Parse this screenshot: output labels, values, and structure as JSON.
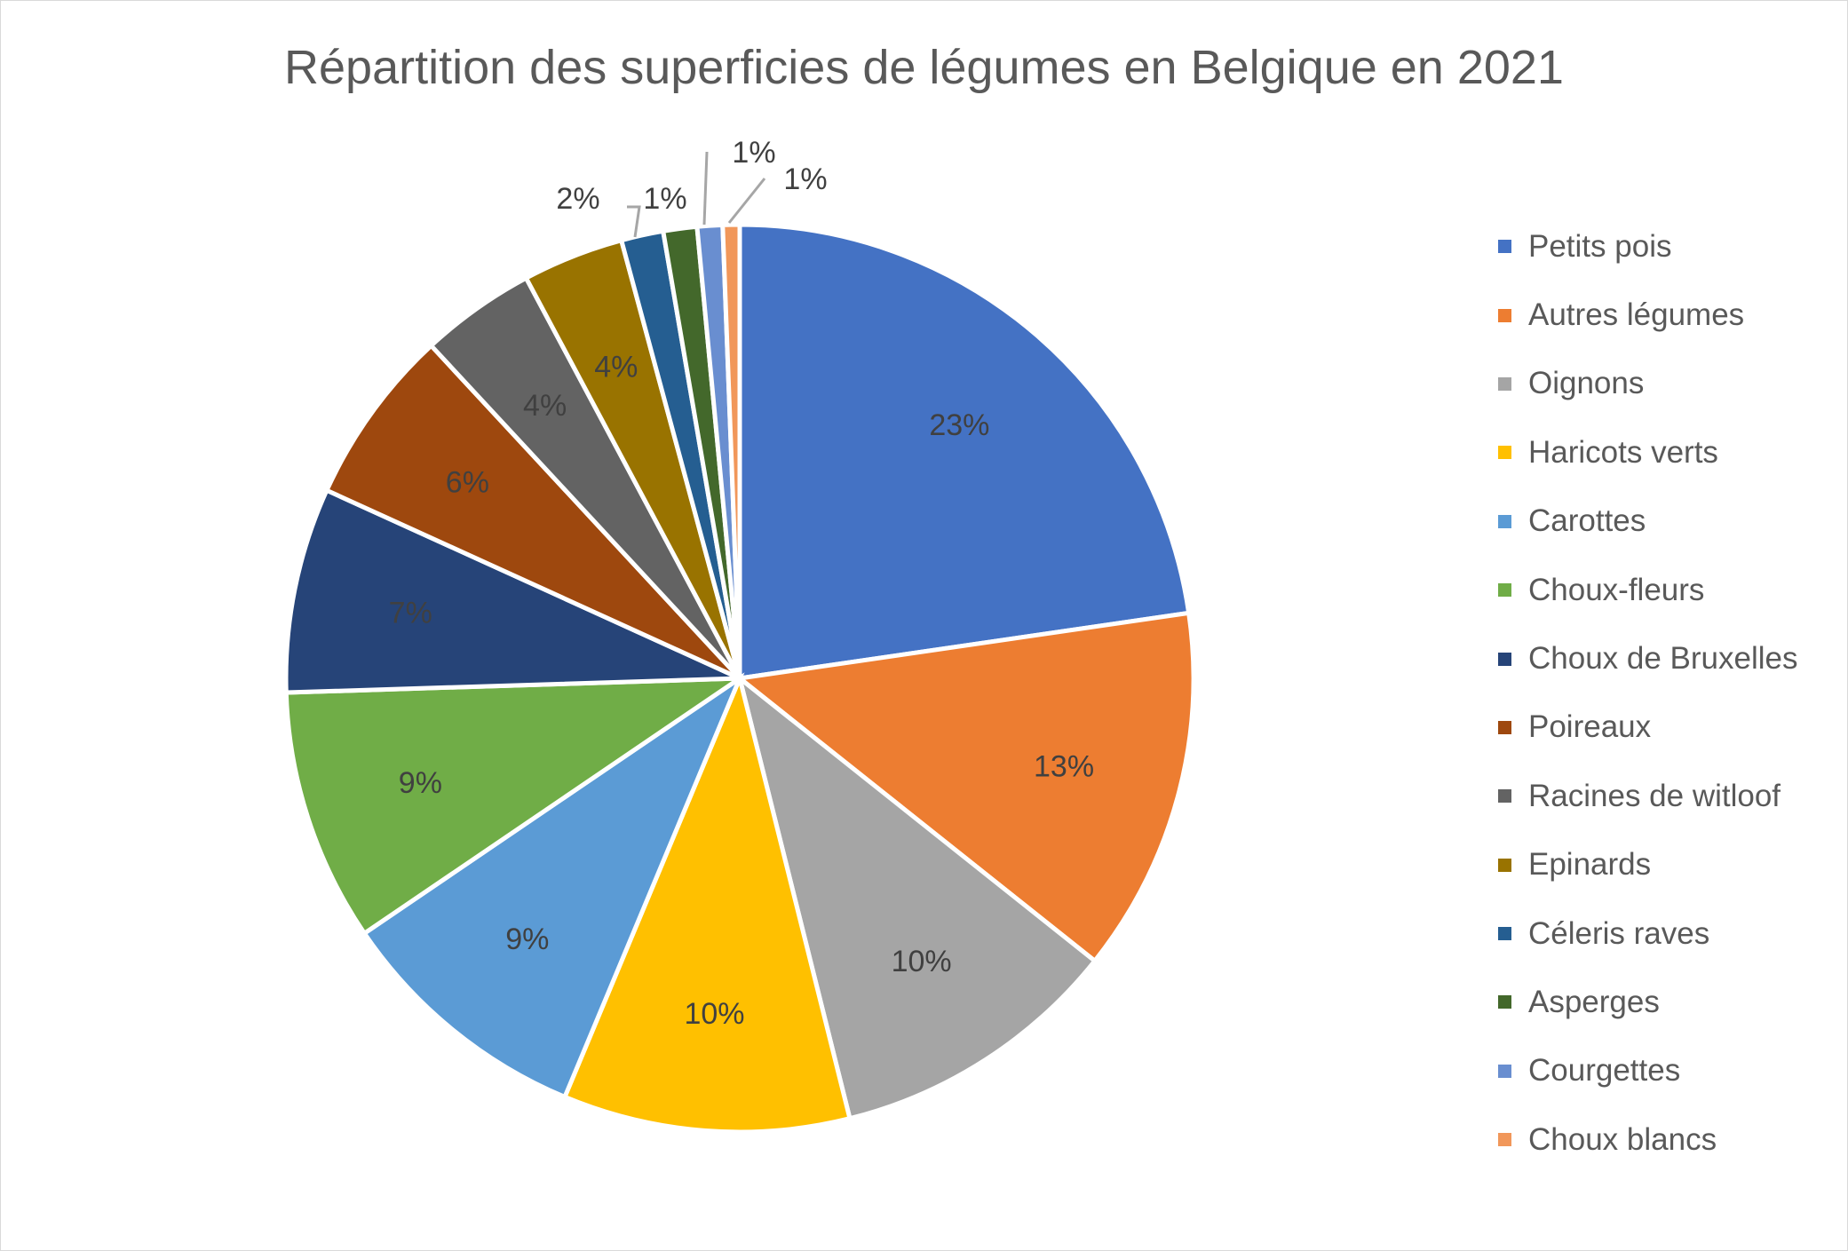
{
  "chart_data": {
    "type": "pie",
    "title": "Répartition des superficies de légumes en Belgique en 2021",
    "categories": [
      "Petits pois",
      "Autres légumes",
      "Oignons",
      "Haricots verts",
      "Carottes",
      "Choux-fleurs",
      "Choux de Bruxelles",
      "Poireaux",
      "Racines de witloof",
      "Epinards",
      "Céleris raves",
      "Asperges",
      "Courgettes",
      "Choux blancs"
    ],
    "values": [
      22.7,
      13,
      10.4,
      10.2,
      9.2,
      9.0,
      7.3,
      6.3,
      4.1,
      3.6,
      1.5,
      1.2,
      0.9,
      0.6
    ],
    "data_labels": [
      "23%",
      "13%",
      "10%",
      "10%",
      "9%",
      "9%",
      "7%",
      "6%",
      "4%",
      "4%",
      "2%",
      "1%",
      "1%",
      "1%"
    ],
    "colors": [
      "#4472C4",
      "#ED7D31",
      "#A5A5A5",
      "#FFC000",
      "#5B9BD5",
      "#70AD47",
      "#264478",
      "#9E480E",
      "#636363",
      "#997300",
      "#255E91",
      "#43682B",
      "#698ED0",
      "#F1975A"
    ],
    "legend_position": "right"
  }
}
